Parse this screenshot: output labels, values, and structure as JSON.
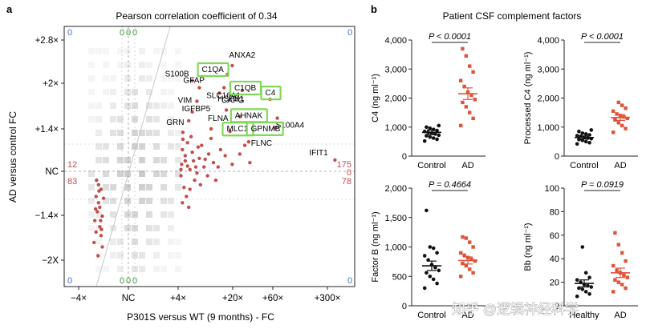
{
  "panel_a": {
    "letter": "a",
    "title": "Pearson correlation coefficient of 0.34",
    "xlabel": "P301S versus WT (9 months) - FC",
    "ylabel": "AD versus control FC",
    "x_ticks": [
      "−4×",
      "NC",
      "+4×",
      "+20×",
      "+60×",
      "+300×"
    ],
    "y_ticks": [
      "+2.8×",
      "+2×",
      "+1.4×",
      "NC",
      "−1.4×",
      "−2X"
    ],
    "quadrant_counts": {
      "top_left_blue": "0",
      "top_right_blue": "0",
      "bottom_left_blue": "0",
      "bottom_right_blue": "0",
      "top_green": [
        "0",
        "0",
        "0"
      ],
      "bottom_green": [
        "0",
        "0",
        "0"
      ],
      "left_red_upper": "12",
      "left_red_lower": "83",
      "right_red_upper": "175",
      "right_red_mid": "0",
      "right_red_lower": "78"
    },
    "gene_labels": [
      "S100B",
      "GFAP",
      "VIM",
      "IGFBP5",
      "GRN",
      "HSPB1",
      "SLC16A1",
      "ANXA2",
      "CAPG",
      "FLNA",
      "S100A4",
      "FLNC",
      "IFIT1"
    ],
    "boxed_labels": [
      "C1QA",
      "C1QB",
      "C4",
      "AHNAK",
      "MLC1",
      "GPNMB"
    ],
    "colors": {
      "points": "#c0504d",
      "box": "#7ed957",
      "blue_count": "#4472c4",
      "green_count": "#3a9a3a",
      "red_count": "#c0504d"
    }
  },
  "panel_b": {
    "letter": "b",
    "title": "Patient CSF complement factors",
    "watermark": "知乎 @逻辑神经科学",
    "colors": {
      "control": "#111111",
      "ad": "#e0533b"
    }
  },
  "chart_data": [
    {
      "type": "scatter",
      "panel": "a",
      "title": "Pearson correlation coefficient of 0.34",
      "xlabel": "P301S versus WT (9 months) - FC",
      "ylabel": "AD versus control FC",
      "x_ticks": [
        "−4×",
        "NC",
        "+4×",
        "+20×",
        "+60×",
        "+300×"
      ],
      "y_ticks": [
        "+2.8×",
        "+2×",
        "+1.4×",
        "NC",
        "−1.4×",
        "−2X"
      ],
      "note": "Coordinates in log2 fold-change units: NC = 0, +4x = 2, +20x = 4.32, +60x = 5.91, +300x = 8.23, +2.8x = 1.49, +2x = 1, +1.4x = 0.49, -1.4x = -0.49, -2x = -1.",
      "labeled_points": [
        {
          "name": "S100B",
          "x": 2.6,
          "y": 1.03
        },
        {
          "name": "GFAP",
          "x": 2.9,
          "y": 0.95
        },
        {
          "name": "VIM",
          "x": 2.8,
          "y": 0.8
        },
        {
          "name": "IGFBP5",
          "x": 2.6,
          "y": 0.68
        },
        {
          "name": "GRN",
          "x": 2.45,
          "y": 0.58
        },
        {
          "name": "HSPB1",
          "x": 3.75,
          "y": 0.89
        },
        {
          "name": "SLC16A1",
          "x": 3.95,
          "y": 0.95
        },
        {
          "name": "ANXA2",
          "x": 4.3,
          "y": 1.2
        },
        {
          "name": "C1QA",
          "x": 4.1,
          "y": 1.1
        },
        {
          "name": "C1QB",
          "x": 4.7,
          "y": 0.92
        },
        {
          "name": "C4",
          "x": 5.8,
          "y": 0.82
        },
        {
          "name": "CAPG",
          "x": 4.05,
          "y": 0.7
        },
        {
          "name": "AHNAK",
          "x": 4.6,
          "y": 0.63
        },
        {
          "name": "S100A4",
          "x": 6.1,
          "y": 0.61
        },
        {
          "name": "FLNA",
          "x": 3.4,
          "y": 0.49
        },
        {
          "name": "MLC1",
          "x": 4.2,
          "y": 0.46
        },
        {
          "name": "GPNMB",
          "x": 6.0,
          "y": 0.5
        },
        {
          "name": "FLNC",
          "x": 4.95,
          "y": 0.34
        },
        {
          "name": "IFIT1",
          "x": 8.55,
          "y": 0.13
        }
      ],
      "cluster_points": [
        {
          "x": 2.12,
          "y": -0.05
        },
        {
          "x": 2.3,
          "y": 0.12
        },
        {
          "x": 2.5,
          "y": 0.02
        },
        {
          "x": 2.18,
          "y": 0.25
        },
        {
          "x": 2.7,
          "y": -0.1
        },
        {
          "x": 2.4,
          "y": 0.33
        },
        {
          "x": 2.9,
          "y": 0.15
        },
        {
          "x": 3.1,
          "y": 0.05
        },
        {
          "x": 2.25,
          "y": -0.18
        },
        {
          "x": 2.6,
          "y": 0.22
        },
        {
          "x": 3.3,
          "y": 0.2
        },
        {
          "x": 2.15,
          "y": 0.08
        },
        {
          "x": 2.8,
          "y": -0.02
        },
        {
          "x": 3.5,
          "y": 0.1
        },
        {
          "x": 2.35,
          "y": -0.28
        },
        {
          "x": 3.0,
          "y": 0.3
        },
        {
          "x": 2.55,
          "y": 0.4
        },
        {
          "x": 3.7,
          "y": 0.05
        },
        {
          "x": 2.2,
          "y": 0.37
        },
        {
          "x": 2.95,
          "y": -0.15
        },
        {
          "x": 4.0,
          "y": 0.18
        },
        {
          "x": 3.25,
          "y": -0.05
        },
        {
          "x": 2.45,
          "y": -0.4
        },
        {
          "x": 4.3,
          "y": 0.08
        },
        {
          "x": 2.65,
          "y": 0.12
        },
        {
          "x": 3.8,
          "y": 0.25
        },
        {
          "x": 2.18,
          "y": -0.35
        },
        {
          "x": 4.6,
          "y": 0.2
        },
        {
          "x": 2.75,
          "y": 0.05
        },
        {
          "x": 3.4,
          "y": 0.38
        },
        {
          "x": 2.3,
          "y": 0.18
        },
        {
          "x": 5.0,
          "y": 0.1
        },
        {
          "x": 2.85,
          "y": 0.28
        },
        {
          "x": 2.12,
          "y": 0.02
        },
        {
          "x": 3.6,
          "y": -0.1
        },
        {
          "x": 2.5,
          "y": -0.2
        },
        {
          "x": 4.8,
          "y": 0.3
        },
        {
          "x": 2.2,
          "y": 0.45
        },
        {
          "x": 3.15,
          "y": 0.14
        },
        {
          "x": 2.4,
          "y": 0.06
        }
      ],
      "negative_points": [
        {
          "x": -1.1,
          "y": -0.2
        },
        {
          "x": -1.2,
          "y": -0.35
        },
        {
          "x": -1.05,
          "y": -0.5
        },
        {
          "x": -1.3,
          "y": -0.28
        },
        {
          "x": -1.15,
          "y": -0.62
        },
        {
          "x": -1.25,
          "y": -0.45
        },
        {
          "x": -1.1,
          "y": -0.72
        },
        {
          "x": -1.35,
          "y": -0.55
        },
        {
          "x": -1.2,
          "y": -0.15
        },
        {
          "x": -1.05,
          "y": -0.85
        },
        {
          "x": -1.3,
          "y": -0.68
        },
        {
          "x": -1.15,
          "y": -0.4
        },
        {
          "x": -1.22,
          "y": -0.95
        },
        {
          "x": -1.0,
          "y": -0.3
        },
        {
          "x": -1.28,
          "y": -0.1
        },
        {
          "x": -1.12,
          "y": -0.55
        },
        {
          "x": -1.38,
          "y": -0.8
        },
        {
          "x": -1.08,
          "y": -0.65
        },
        {
          "x": -1.18,
          "y": -0.22
        },
        {
          "x": -1.32,
          "y": -0.42
        }
      ]
    },
    {
      "type": "scatter",
      "panel": "b",
      "title": "C4",
      "ylabel": "C4 (ng ml⁻¹)",
      "y_ticks": [
        "0",
        "1,000",
        "2,000",
        "3,000",
        "4,000"
      ],
      "ylim": [
        0,
        4000
      ],
      "categories": [
        "Control",
        "AD"
      ],
      "p_value": "P < 0.0001",
      "series": [
        {
          "name": "Control",
          "mean": 820,
          "sem": 80,
          "values": [
            520,
            580,
            620,
            660,
            700,
            720,
            760,
            790,
            820,
            850,
            880,
            920,
            960,
            1000,
            1050
          ]
        },
        {
          "name": "AD",
          "mean": 2150,
          "sem": 200,
          "values": [
            1050,
            1300,
            1500,
            1700,
            1850,
            1950,
            2100,
            2200,
            2400,
            2600,
            2900,
            3100,
            3450,
            3700
          ]
        }
      ]
    },
    {
      "type": "scatter",
      "panel": "b",
      "title": "Processed C4",
      "ylabel": "Processed C4 (ng ml⁻¹)",
      "y_ticks": [
        "0",
        "1,000",
        "2,000",
        "3,000",
        "4,000"
      ],
      "ylim": [
        0,
        4000
      ],
      "categories": [
        "Control",
        "AD"
      ],
      "p_value": "P < 0.0001",
      "series": [
        {
          "name": "Control",
          "mean": 640,
          "sem": 50,
          "values": [
            420,
            460,
            500,
            540,
            570,
            600,
            620,
            650,
            680,
            700,
            730,
            760,
            790,
            850,
            900
          ]
        },
        {
          "name": "AD",
          "mean": 1330,
          "sem": 100,
          "values": [
            820,
            950,
            1050,
            1150,
            1250,
            1300,
            1350,
            1400,
            1450,
            1550,
            1650,
            1750,
            1850
          ]
        }
      ]
    },
    {
      "type": "scatter",
      "panel": "b",
      "title": "Factor B",
      "ylabel": "Factor B (ng ml⁻¹)",
      "y_ticks": [
        "0",
        "500",
        "1,000",
        "1,500",
        "2,000"
      ],
      "ylim": [
        0,
        2000
      ],
      "categories": [
        "Control",
        "AD"
      ],
      "p_value": "P = 0.4664",
      "series": [
        {
          "name": "Control",
          "mean": 680,
          "sem": 80,
          "values": [
            300,
            380,
            450,
            500,
            560,
            600,
            650,
            700,
            780,
            850,
            900,
            980,
            1000,
            1620
          ]
        },
        {
          "name": "AD",
          "mean": 770,
          "sem": 60,
          "values": [
            500,
            560,
            620,
            680,
            720,
            760,
            790,
            820,
            860,
            900,
            1000,
            1080,
            1150,
            1170
          ]
        }
      ]
    },
    {
      "type": "scatter",
      "panel": "b",
      "title": "Bb",
      "ylabel": "Bb (ng ml⁻¹)",
      "y_ticks": [
        "0",
        "20",
        "40",
        "60",
        "80",
        "100"
      ],
      "ylim": [
        0,
        100
      ],
      "categories": [
        "Healthy",
        "AD"
      ],
      "p_value": "P = 0.0919",
      "series": [
        {
          "name": "Healthy",
          "mean": 19,
          "sem": 3,
          "values": [
            8,
            10,
            12,
            14,
            15,
            16,
            17,
            18,
            20,
            22,
            24,
            28,
            50
          ]
        },
        {
          "name": "AD",
          "mean": 28,
          "sem": 4,
          "values": [
            12,
            15,
            18,
            20,
            22,
            24,
            26,
            28,
            30,
            34,
            38,
            45,
            52,
            62
          ]
        }
      ]
    }
  ]
}
